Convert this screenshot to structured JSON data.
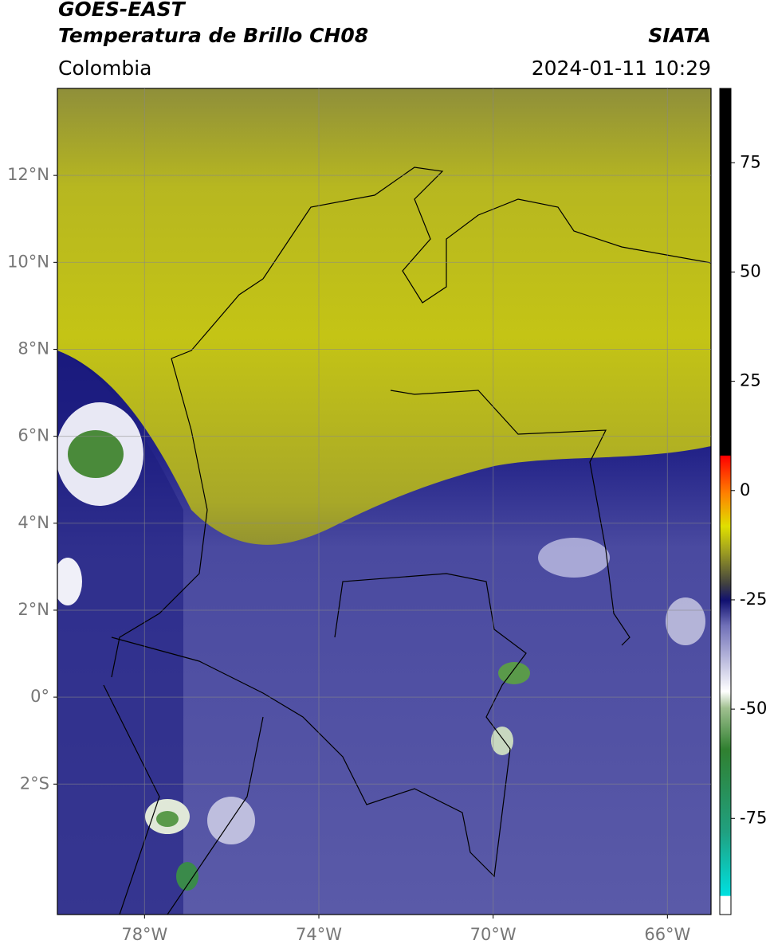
{
  "header": {
    "title": "GOES-EAST",
    "subtitle": "Temperatura de Brillo CH08",
    "source": "SIATA",
    "region": "Colombia",
    "datetime": "2024-01-11 10:29"
  },
  "map": {
    "xlim": [
      -80,
      -65
    ],
    "ylim": [
      -5,
      14
    ],
    "xticks": [
      {
        "value": -78,
        "label": "78°W"
      },
      {
        "value": -74,
        "label": "74°W"
      },
      {
        "value": -70,
        "label": "70°W"
      },
      {
        "value": -66,
        "label": "66°W"
      }
    ],
    "yticks": [
      {
        "value": -2,
        "label": "2°S"
      },
      {
        "value": 0,
        "label": "0°"
      },
      {
        "value": 2,
        "label": "2°N"
      },
      {
        "value": 4,
        "label": "4°N"
      },
      {
        "value": 6,
        "label": "6°N"
      },
      {
        "value": 8,
        "label": "8°N"
      },
      {
        "value": 10,
        "label": "10°N"
      },
      {
        "value": 12,
        "label": "12°N"
      }
    ],
    "grid": true
  },
  "colorbar": {
    "lim": [
      -97,
      92
    ],
    "ticks": [
      -75,
      -50,
      -25,
      0,
      25,
      50,
      75
    ]
  }
}
